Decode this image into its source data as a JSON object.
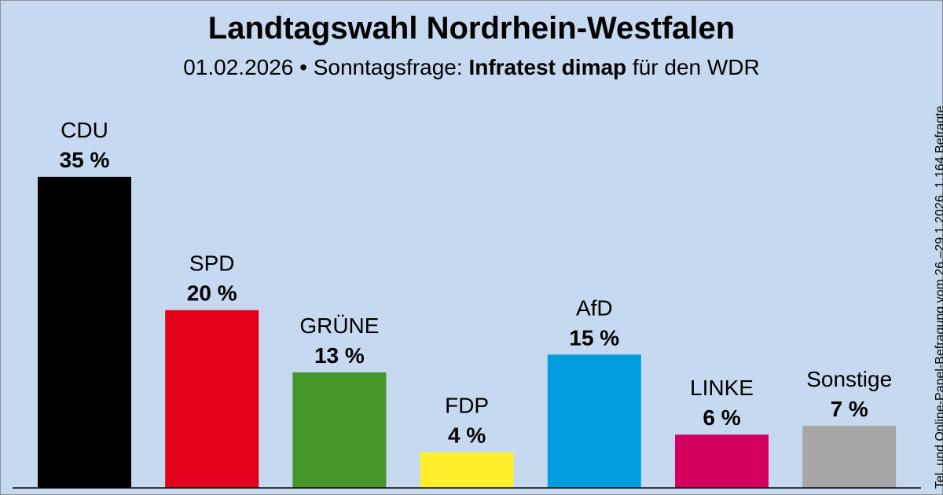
{
  "header": {
    "title": "Landtagswahl Nordrhein-Westfalen",
    "subtitle_prefix": "01.02.2026 • Sonntagsfrage: ",
    "subtitle_institute": "Infratest dimap",
    "subtitle_suffix": " für den WDR"
  },
  "side_note": "Tel. und Online-Panel-Befragung vom 26.–29.1.2026, 1.164 Befragte",
  "chart_data": {
    "type": "bar",
    "title": "Landtagswahl Nordrhein-Westfalen",
    "subtitle": "01.02.2026 • Sonntagsfrage: Infratest dimap für den WDR",
    "xlabel": "",
    "ylabel": "",
    "unit": "%",
    "ylim": [
      0,
      35
    ],
    "grid": false,
    "categories": [
      "CDU",
      "SPD",
      "GRÜNE",
      "FDP",
      "AfD",
      "LINKE",
      "Sonstige"
    ],
    "values": [
      35,
      20,
      13,
      4,
      15,
      6,
      7
    ],
    "value_labels": [
      "35 %",
      "20 %",
      "13 %",
      "4 %",
      "15 %",
      "6 %",
      "7 %"
    ],
    "colors": [
      "#000000",
      "#e2001a",
      "#46962b",
      "#ffed2e",
      "#009ee0",
      "#d4005f",
      "#a6a6a6"
    ],
    "note": "Tel. und Online-Panel-Befragung vom 26.–29.1.2026, 1.164 Befragte"
  }
}
